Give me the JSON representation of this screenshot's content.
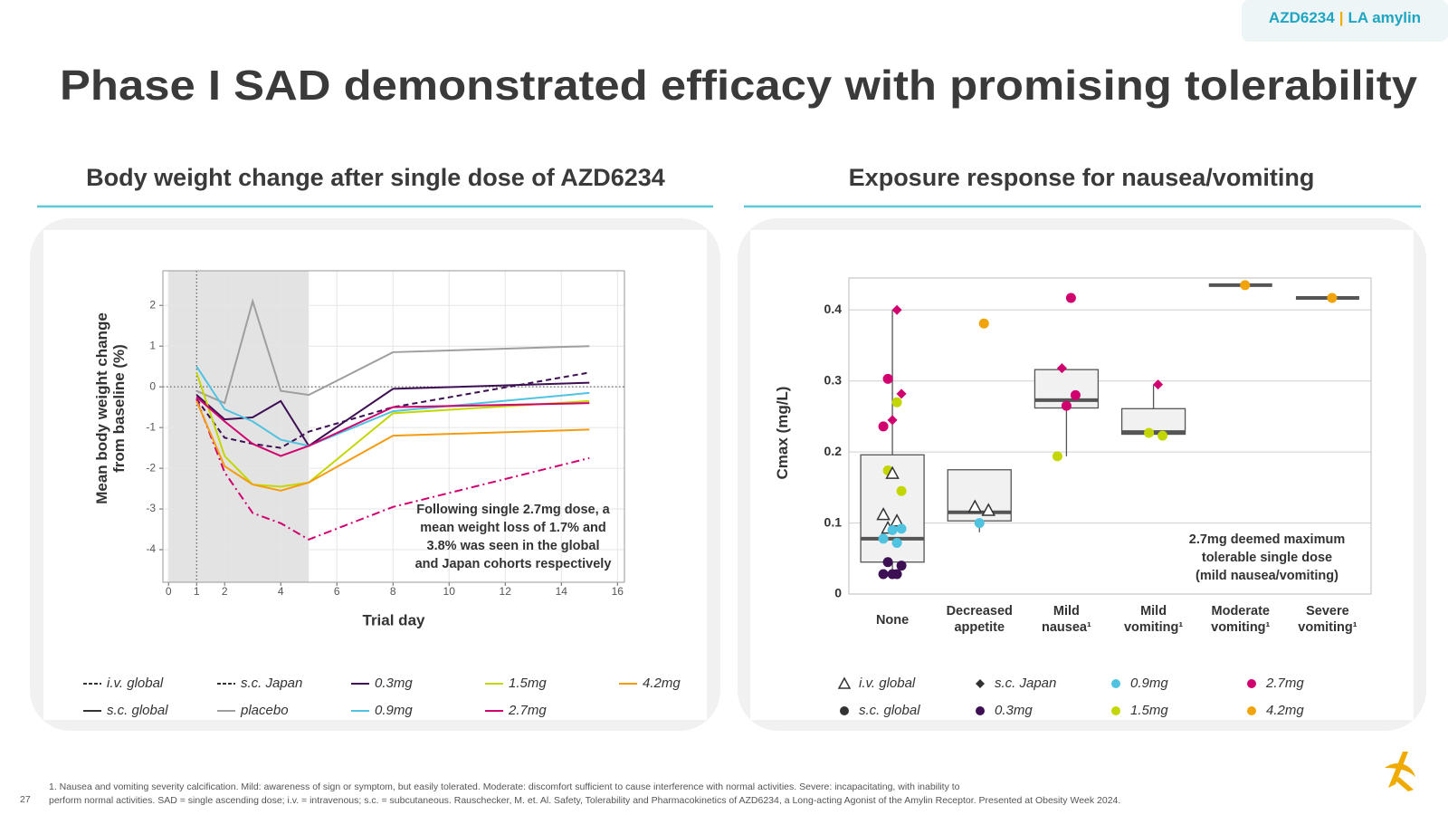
{
  "header": {
    "tag": [
      "AZD6234",
      "|",
      "LA amylin"
    ],
    "title": "Phase I SAD demonstrated efficacy with promising tolerability"
  },
  "chart_data": [
    {
      "type": "line",
      "title": "Body weight change after single dose of AZD6234",
      "x_label": "Trial day",
      "y_label": "Mean body weight change\nfrom baseline (%)",
      "x": [
        1,
        2,
        3,
        4,
        5,
        8,
        15
      ],
      "xlim": [
        -0.2,
        16.25
      ],
      "ylim": [
        -4.8,
        2.85
      ],
      "xticks": [
        0,
        1,
        2,
        4,
        6,
        8,
        10,
        12,
        14,
        16
      ],
      "yticks": [
        -4,
        -3,
        -2,
        -1,
        0,
        1,
        2
      ],
      "grid": true,
      "shaded_region": [
        0,
        5
      ],
      "ref_x": 1,
      "ref_y": 0,
      "series": [
        {
          "color": "#3c1053",
          "dash": "dashed",
          "values": [
            -0.3,
            -1.25,
            -1.4,
            -1.5,
            -1.1,
            -0.5,
            0.35
          ]
        },
        {
          "color": "#d0006f",
          "dash": "dashdot",
          "values": [
            -0.3,
            -2.1,
            -3.1,
            -3.35,
            -3.75,
            -2.95,
            -1.75
          ]
        },
        {
          "color": "#9e9e9e",
          "dash": "solid",
          "values": [
            -0.1,
            -0.4,
            2.1,
            -0.1,
            -0.2,
            0.85,
            1.0
          ]
        },
        {
          "color": "#3c1053",
          "dash": "solid",
          "values": [
            -0.2,
            -0.8,
            -0.75,
            -0.35,
            -1.45,
            -0.05,
            0.1
          ]
        },
        {
          "color": "#4fc3e0",
          "dash": "solid",
          "values": [
            0.5,
            -0.55,
            -0.85,
            -1.3,
            -1.45,
            -0.6,
            -0.15
          ]
        },
        {
          "color": "#c4d600",
          "dash": "solid",
          "values": [
            0.35,
            -1.7,
            -2.4,
            -2.45,
            -2.35,
            -0.65,
            -0.35
          ]
        },
        {
          "color": "#d0006f",
          "dash": "solid",
          "values": [
            -0.25,
            -0.85,
            -1.4,
            -1.7,
            -1.45,
            -0.5,
            -0.4
          ]
        },
        {
          "color": "#f39c12",
          "dash": "solid",
          "values": [
            -0.35,
            -1.95,
            -2.4,
            -2.55,
            -2.35,
            -1.2,
            -1.05
          ]
        }
      ],
      "legend": [
        {
          "label": "i.v. global",
          "color": "#333333",
          "dash": "dashed"
        },
        {
          "label": "s.c. global",
          "color": "#333333",
          "dash": "solid"
        },
        {
          "label": "s.c. Japan",
          "color": "#333333",
          "dash": "dashdot"
        },
        {
          "label": "placebo",
          "color": "#9e9e9e",
          "dash": "solid"
        },
        {
          "label": "0.3mg",
          "color": "#3c1053",
          "dash": "solid"
        },
        {
          "label": "0.9mg",
          "color": "#4fc3e0",
          "dash": "solid"
        },
        {
          "label": "1.5mg",
          "color": "#c4d600",
          "dash": "solid"
        },
        {
          "label": "2.7mg",
          "color": "#d0006f",
          "dash": "solid"
        },
        {
          "label": "4.2mg",
          "color": "#f39c12",
          "dash": "solid"
        }
      ],
      "annotation": "Following single 2.7mg dose, a\nmean weight loss of 1.7% and\n3.8% was seen in the global\nand Japan cohorts respectively"
    },
    {
      "type": "box",
      "title": "Exposure response for nausea/vomiting",
      "y_label": "Cmax (mg/L)",
      "categories": [
        "None",
        "Decreased\nappetite",
        "Mild\nnausea¹",
        "Mild\nvomiting¹",
        "Moderate\nvomiting¹",
        "Severe\nvomiting¹"
      ],
      "ylim": [
        0,
        0.445
      ],
      "yticks": [
        0,
        0.1,
        0.2,
        0.3,
        0.4
      ],
      "grid": true,
      "boxes": [
        {
          "low": 0.025,
          "q1": 0.045,
          "median": 0.078,
          "q3": 0.196,
          "high": 0.4
        },
        {
          "low": 0.087,
          "q1": 0.103,
          "median": 0.115,
          "q3": 0.175,
          "high": 0.175
        },
        {
          "low": 0.194,
          "q1": 0.262,
          "median": 0.273,
          "q3": 0.316,
          "high": 0.316
        },
        {
          "low": 0.225,
          "q1": 0.225,
          "median": 0.228,
          "q3": 0.261,
          "high": 0.295
        },
        {
          "low": 0.435,
          "q1": 0.435,
          "median": 0.435,
          "q3": 0.435,
          "high": 0.435
        },
        {
          "low": 0.417,
          "q1": 0.417,
          "median": 0.417,
          "q3": 0.417,
          "high": 0.417
        }
      ],
      "points": [
        {
          "category": 0,
          "value": 0.4,
          "marker": "diamond",
          "color": "#d0006f"
        },
        {
          "category": 0,
          "value": 0.303,
          "marker": "circle",
          "color": "#d0006f"
        },
        {
          "category": 0,
          "value": 0.282,
          "marker": "diamond",
          "color": "#d0006f"
        },
        {
          "category": 0,
          "value": 0.245,
          "marker": "diamond",
          "color": "#d0006f"
        },
        {
          "category": 0,
          "value": 0.236,
          "marker": "circle",
          "color": "#d0006f"
        },
        {
          "category": 0,
          "value": 0.27,
          "marker": "circle",
          "color": "#c4d600"
        },
        {
          "category": 0,
          "value": 0.174,
          "marker": "circle",
          "color": "#c4d600"
        },
        {
          "category": 0,
          "value": 0.145,
          "marker": "circle",
          "color": "#c4d600"
        },
        {
          "category": 0,
          "value": 0.17,
          "marker": "triangle",
          "color": "#333333"
        },
        {
          "category": 0,
          "value": 0.112,
          "marker": "triangle",
          "color": "#333333"
        },
        {
          "category": 0,
          "value": 0.103,
          "marker": "triangle",
          "color": "#333333"
        },
        {
          "category": 0,
          "value": 0.093,
          "marker": "triangle",
          "color": "#333333"
        },
        {
          "category": 0,
          "value": 0.092,
          "marker": "circle",
          "color": "#4fc3e0"
        },
        {
          "category": 0,
          "value": 0.09,
          "marker": "circle",
          "color": "#4fc3e0"
        },
        {
          "category": 0,
          "value": 0.078,
          "marker": "circle",
          "color": "#4fc3e0"
        },
        {
          "category": 0,
          "value": 0.072,
          "marker": "circle",
          "color": "#4fc3e0"
        },
        {
          "category": 0,
          "value": 0.045,
          "marker": "circle",
          "color": "#3c1053"
        },
        {
          "category": 0,
          "value": 0.04,
          "marker": "circle",
          "color": "#3c1053"
        },
        {
          "category": 0,
          "value": 0.028,
          "marker": "circle",
          "color": "#3c1053"
        },
        {
          "category": 0,
          "value": 0.028,
          "marker": "circle",
          "color": "#3c1053"
        },
        {
          "category": 0,
          "value": 0.028,
          "marker": "circle",
          "color": "#3c1053"
        },
        {
          "category": 1,
          "value": 0.381,
          "marker": "circle",
          "color": "#f0a30a"
        },
        {
          "category": 1,
          "value": 0.123,
          "marker": "triangle",
          "color": "#333333"
        },
        {
          "category": 1,
          "value": 0.118,
          "marker": "triangle",
          "color": "#333333"
        },
        {
          "category": 1,
          "value": 0.1,
          "marker": "circle",
          "color": "#4fc3e0"
        },
        {
          "category": 2,
          "value": 0.417,
          "marker": "circle",
          "color": "#d0006f"
        },
        {
          "category": 2,
          "value": 0.318,
          "marker": "diamond",
          "color": "#d0006f"
        },
        {
          "category": 2,
          "value": 0.28,
          "marker": "circle",
          "color": "#d0006f"
        },
        {
          "category": 2,
          "value": 0.265,
          "marker": "circle",
          "color": "#d0006f"
        },
        {
          "category": 2,
          "value": 0.194,
          "marker": "circle",
          "color": "#c4d600"
        },
        {
          "category": 3,
          "value": 0.295,
          "marker": "diamond",
          "color": "#d0006f"
        },
        {
          "category": 3,
          "value": 0.227,
          "marker": "circle",
          "color": "#c4d600"
        },
        {
          "category": 3,
          "value": 0.223,
          "marker": "circle",
          "color": "#c4d600"
        },
        {
          "category": 4,
          "value": 0.435,
          "marker": "circle",
          "color": "#f0a30a"
        },
        {
          "category": 5,
          "value": 0.417,
          "marker": "circle",
          "color": "#f0a30a"
        }
      ],
      "legend": [
        {
          "label": "i.v. global",
          "marker": "triangle",
          "color": "#333333"
        },
        {
          "label": "s.c. global",
          "marker": "circle",
          "color": "#333333"
        },
        {
          "label": "s.c. Japan",
          "marker": "diamond",
          "color": "#333333"
        },
        {
          "label": "0.3mg",
          "marker": "circle",
          "color": "#3c1053"
        },
        {
          "label": "0.9mg",
          "marker": "circle",
          "color": "#4fc3e0"
        },
        {
          "label": "1.5mg",
          "marker": "circle",
          "color": "#c4d600"
        },
        {
          "label": "2.7mg",
          "marker": "circle",
          "color": "#d0006f"
        },
        {
          "label": "4.2mg",
          "marker": "circle",
          "color": "#f0a30a"
        }
      ],
      "annotation": "2.7mg deemed maximum\ntolerable single dose\n(mild nausea/vomiting)"
    }
  ],
  "footer": {
    "page": "27",
    "note": "1. Nausea and vomiting severity calcification. Mild: awareness of sign or symptom, but easily tolerated. Moderate: discomfort sufficient to cause interference with normal activities. Severe: incapacitating, with inability to\nperform normal activities. SAD = single ascending dose; i.v. = intravenous; s.c. = subcutaneous. Rauschecker, M. et. Al. Safety, Tolerability and Pharmacokinetics of AZD6234, a Long-acting Agonist of the Amylin Receptor. Presented at Obesity Week 2024."
  }
}
